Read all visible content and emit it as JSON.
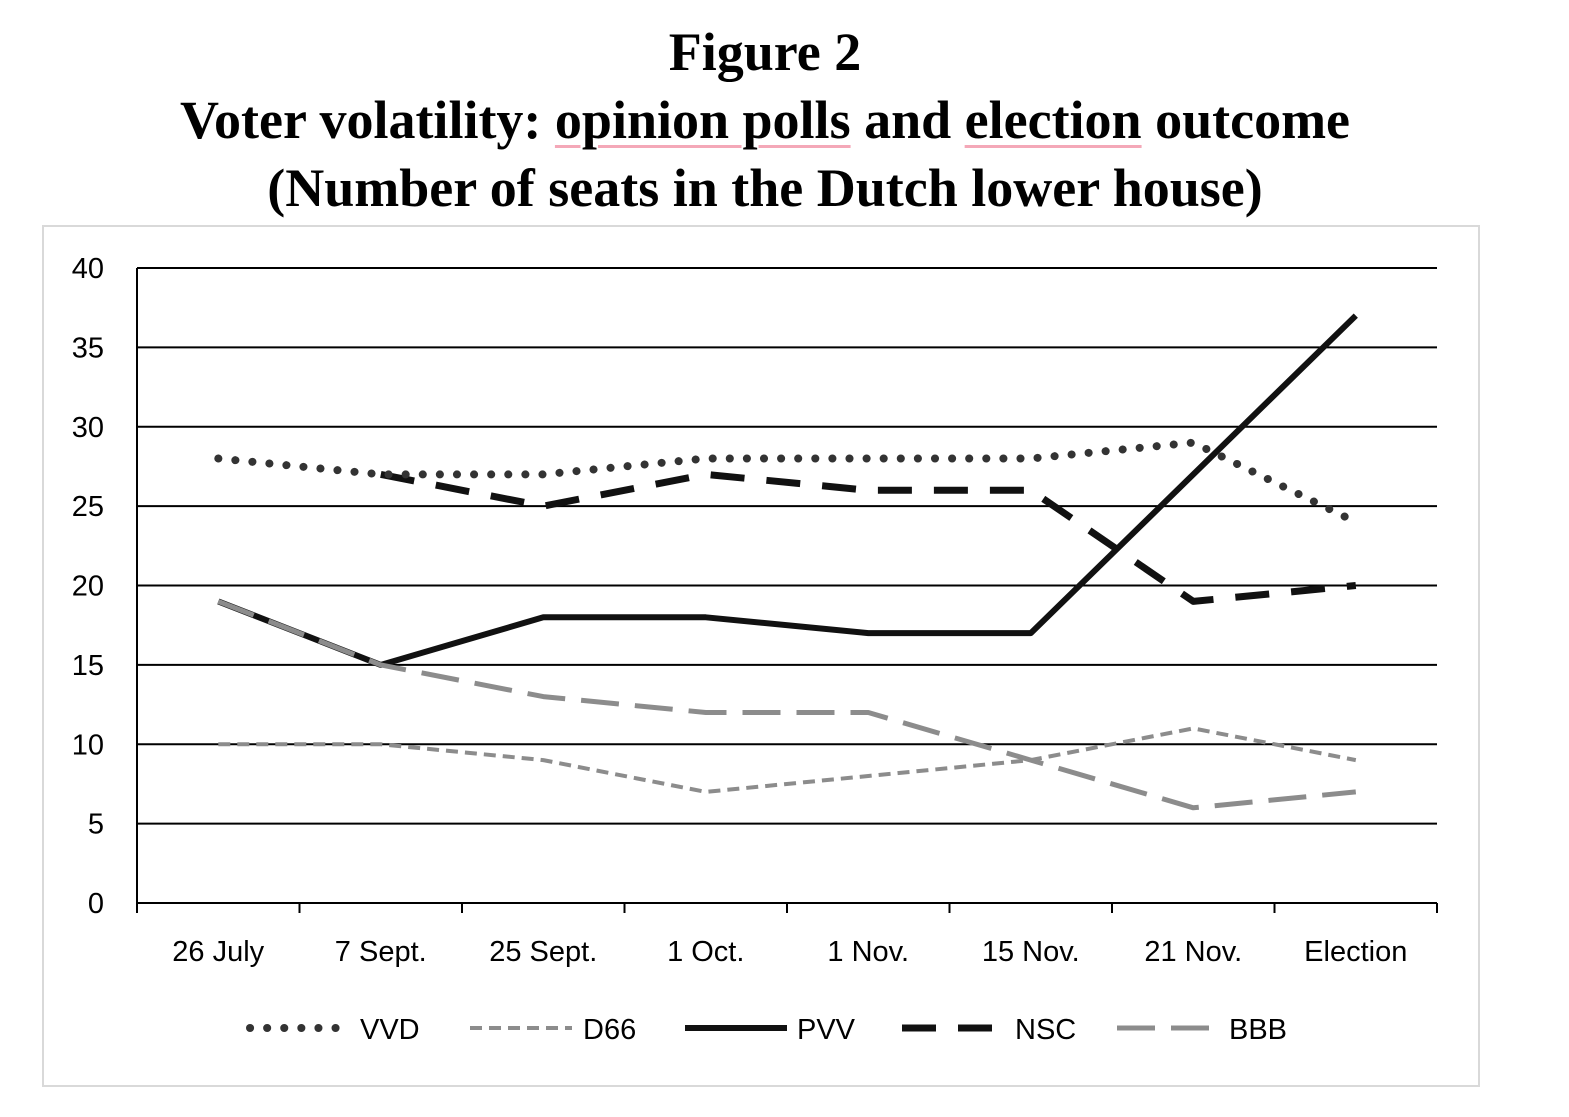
{
  "figure": {
    "label": "Figure 2",
    "title_prefix": "Voter volatility: ",
    "title_u1": "opinion polls",
    "title_mid": " and ",
    "title_u2": "election",
    "title_suffix": " outcome",
    "subtitle": "(Number of seats in the Dutch lower house)"
  },
  "chart_data": {
    "type": "line",
    "categories": [
      "26 July",
      "7 Sept.",
      "25 Sept.",
      "1 Oct.",
      "1 Nov.",
      "15 Nov.",
      "21 Nov.",
      "Election"
    ],
    "yticks": [
      "0",
      "5",
      "10",
      "15",
      "20",
      "25",
      "30",
      "35",
      "40"
    ],
    "ylim": [
      0,
      40
    ],
    "grid": true,
    "legend_position": "bottom",
    "series": [
      {
        "name": "VVD",
        "values": [
          28,
          27,
          27,
          28,
          28,
          28,
          29,
          24
        ],
        "color": "#333333",
        "style": "dotted"
      },
      {
        "name": "D66",
        "values": [
          10,
          10,
          9,
          7,
          8,
          9,
          11,
          9
        ],
        "color": "#8c8c8c",
        "style": "short-dash"
      },
      {
        "name": "PVV",
        "values": [
          19,
          15,
          18,
          18,
          17,
          17,
          27,
          37
        ],
        "color": "#111111",
        "style": "solid"
      },
      {
        "name": "NSC",
        "values": [
          null,
          27,
          25,
          27,
          26,
          26,
          19,
          20
        ],
        "color": "#111111",
        "style": "long-dash"
      },
      {
        "name": "BBB",
        "values": [
          19,
          15,
          13,
          12,
          12,
          9,
          6,
          7
        ],
        "color": "#8c8c8c",
        "style": "long-dash"
      }
    ]
  }
}
